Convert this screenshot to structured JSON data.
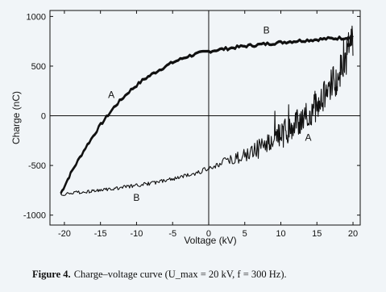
{
  "chart_data": {
    "type": "line",
    "title": "",
    "xlabel": "Voltage (kV)",
    "ylabel": "Charge (nC)",
    "xlim": [
      -22,
      21
    ],
    "ylim": [
      -1100,
      1060
    ],
    "grid": false,
    "crosshair_at": [
      0,
      0
    ],
    "x_ticks": [
      -20,
      -15,
      -10,
      -5,
      0,
      5,
      10,
      15,
      20
    ],
    "x_tick_labels": [
      "-20",
      "-15",
      "-10",
      "-5",
      "0",
      "5",
      "10",
      "15",
      "20"
    ],
    "y_ticks": [
      1000,
      500,
      0,
      -500,
      -1000
    ],
    "y_tick_labels": [
      "1000",
      "500",
      "0",
      "-500",
      "-1000"
    ],
    "series": [
      {
        "name": "",
        "segment": "upper",
        "x": [
          -20.5,
          -19,
          -17,
          -15,
          -13,
          -11,
          -9,
          -7,
          -5,
          -3,
          -1,
          1,
          3,
          5,
          7,
          9,
          11,
          13,
          15,
          17,
          19,
          20
        ],
        "y": [
          -780,
          -560,
          -310,
          -90,
          100,
          250,
          370,
          460,
          540,
          600,
          640,
          665,
          685,
          705,
          720,
          735,
          750,
          762,
          772,
          782,
          790,
          790
        ],
        "noisy": false
      },
      {
        "name": "",
        "segment": "lower",
        "x": [
          20,
          19,
          18,
          17,
          16,
          15,
          14,
          13,
          12,
          11,
          10,
          9,
          8,
          6,
          4,
          2,
          0,
          -2,
          -4,
          -6,
          -8,
          -10,
          -12,
          -14,
          -16,
          -18,
          -20.5
        ],
        "y": [
          760,
          580,
          420,
          300,
          200,
          110,
          40,
          -20,
          -80,
          -130,
          -180,
          -230,
          -280,
          -360,
          -420,
          -470,
          -530,
          -580,
          -620,
          -650,
          -680,
          -700,
          -720,
          -740,
          -755,
          -770,
          -790
        ],
        "noisy": true
      }
    ],
    "annotations": [
      {
        "text": "B",
        "x": 8,
        "y": 830
      },
      {
        "text": "A",
        "x": -13.5,
        "y": 180
      },
      {
        "text": "A",
        "x": 13.8,
        "y": -250
      },
      {
        "text": "B",
        "x": -10,
        "y": -855
      }
    ],
    "colors": {
      "trace": "#111111",
      "axes": "#111111",
      "background": "#f1f5f8"
    }
  },
  "caption": {
    "lead": "Figure 4.",
    "text": "Charge–voltage curve (U_max = 20 kV, f = 300 Hz)."
  }
}
